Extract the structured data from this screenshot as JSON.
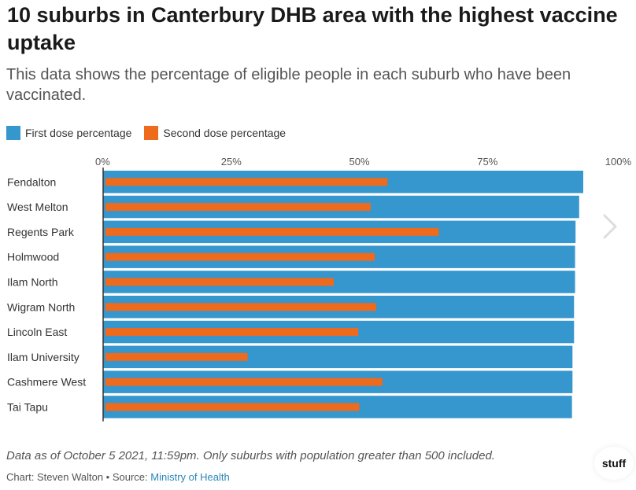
{
  "header": {
    "title": "10 suburbs in Canterbury DHB area with the highest vaccine uptake",
    "subtitle": "This data shows the percentage of eligible people in each suburb who have been vaccinated."
  },
  "legend": {
    "first_label": "First dose percentage",
    "second_label": "Second dose percentage"
  },
  "colors": {
    "first": "#3696ce",
    "second": "#ee6a1c"
  },
  "chart_data": {
    "type": "bar",
    "orientation": "horizontal",
    "title": "10 suburbs in Canterbury DHB area with the highest vaccine uptake",
    "xlabel": "",
    "ylabel": "",
    "xlim": [
      0,
      100
    ],
    "ticks": [
      "0%",
      "25%",
      "50%",
      "75%",
      "100%"
    ],
    "tick_values": [
      0,
      25,
      50,
      75,
      100
    ],
    "categories": [
      "Fendalton",
      "West Melton",
      "Regents Park",
      "Holmwood",
      "Ilam North",
      "Wigram North",
      "Lincoln East",
      "Ilam University",
      "Cashmere West",
      "Tai Tapu"
    ],
    "series": [
      {
        "name": "First dose percentage",
        "values": [
          93.7,
          92.9,
          92.2,
          92.1,
          92.1,
          91.9,
          91.9,
          91.6,
          91.6,
          91.5
        ]
      },
      {
        "name": "Second dose percentage",
        "values": [
          55.5,
          52.2,
          65.5,
          53.0,
          45.0,
          53.3,
          49.8,
          28.2,
          54.5,
          50.0
        ]
      }
    ]
  },
  "footer": {
    "note": "Data as of October 5 2021, 11:59pm. Only suburbs with population greater than 500 included.",
    "credit_prefix": "Chart: Steven Walton • Source: ",
    "source_link": "Ministry of Health",
    "logo": "stuff"
  },
  "icons": {
    "next": "chevron-right-icon"
  }
}
